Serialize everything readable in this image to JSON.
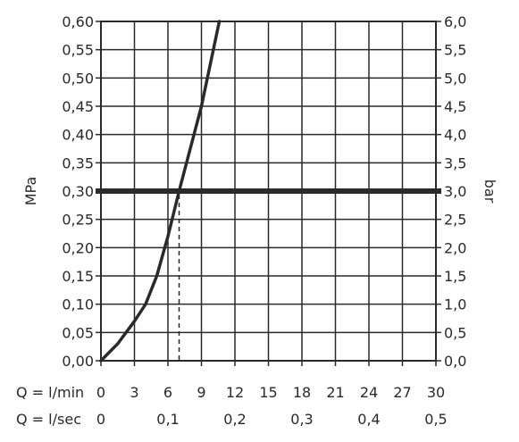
{
  "chart_data": {
    "type": "line",
    "title": "",
    "ylabel_left": "MPa",
    "ylabel_right": "bar",
    "ylim": [
      0,
      0.6
    ],
    "xlim": [
      0,
      30
    ],
    "y_ticks": [
      "0,00",
      "0,05",
      "0,10",
      "0,15",
      "0,20",
      "0,25",
      "0,30",
      "0,35",
      "0,40",
      "0,45",
      "0,50",
      "0,55",
      "0,60"
    ],
    "y_ticks_right": [
      "0,0",
      "0,5",
      "1,0",
      "1,5",
      "2,0",
      "2,5",
      "3,0",
      "3,5",
      "4,0",
      "4,5",
      "5,0",
      "5,5",
      "6,0"
    ],
    "x_row_min": {
      "label": "Q = l/min",
      "ticks": [
        {
          "x": 0,
          "label": "0"
        },
        {
          "x": 3,
          "label": "3"
        },
        {
          "x": 6,
          "label": "6"
        },
        {
          "x": 9,
          "label": "9"
        },
        {
          "x": 12,
          "label": "12"
        },
        {
          "x": 15,
          "label": "15"
        },
        {
          "x": 18,
          "label": "18"
        },
        {
          "x": 21,
          "label": "21"
        },
        {
          "x": 24,
          "label": "24"
        },
        {
          "x": 27,
          "label": "27"
        },
        {
          "x": 30,
          "label": "30"
        }
      ]
    },
    "x_row_sec": {
      "label": "Q = l/sec",
      "ticks": [
        {
          "x": 0,
          "label": "0"
        },
        {
          "x": 6,
          "label": "0,1"
        },
        {
          "x": 12,
          "label": "0,2"
        },
        {
          "x": 18,
          "label": "0,3"
        },
        {
          "x": 24,
          "label": "0,4"
        },
        {
          "x": 30,
          "label": "0,5"
        }
      ]
    },
    "series": [
      {
        "values": [
          {
            "x": 0,
            "y": 0
          },
          {
            "x": 1.5,
            "y": 0.03
          },
          {
            "x": 3,
            "y": 0.07
          },
          {
            "x": 4,
            "y": 0.1
          },
          {
            "x": 5,
            "y": 0.15
          },
          {
            "x": 6,
            "y": 0.22
          },
          {
            "x": 7,
            "y": 0.3
          },
          {
            "x": 9,
            "y": 0.45
          },
          {
            "x": 10.6,
            "y": 0.6
          }
        ]
      }
    ],
    "reference_line": {
      "y": 0.3
    },
    "reference_drop": {
      "x": 7.0,
      "y": 0.3
    },
    "grid": true
  }
}
